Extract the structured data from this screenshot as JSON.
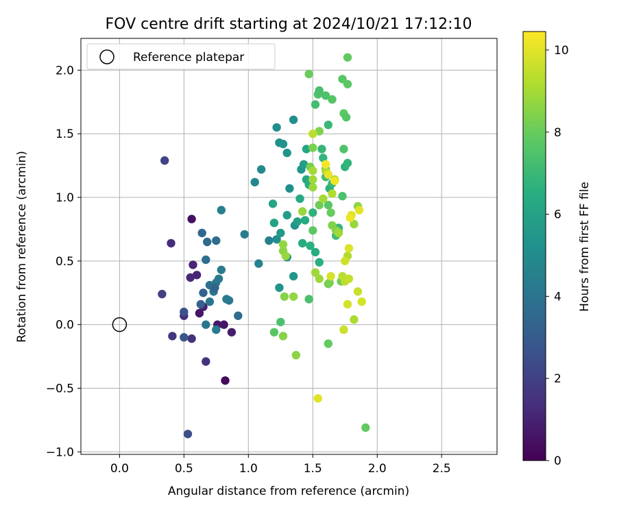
{
  "chart_data": {
    "type": "scatter",
    "title": "FOV centre drift starting at 2024/10/21 17:12:10",
    "xlabel": "Angular distance from reference (arcmin)",
    "ylabel": "Rotation from reference (arcmin)",
    "xlim": [
      -0.3,
      2.93
    ],
    "ylim": [
      -1.02,
      2.25
    ],
    "xticks": [
      0.0,
      0.5,
      1.0,
      1.5,
      2.0,
      2.5
    ],
    "xtick_labels": [
      "0.0",
      "0.5",
      "1.0",
      "1.5",
      "2.0",
      "2.5"
    ],
    "yticks": [
      -1.0,
      -0.5,
      0.0,
      0.5,
      1.0,
      1.5,
      2.0
    ],
    "ytick_labels": [
      "−1.0",
      "−0.5",
      "0.0",
      "0.5",
      "1.0",
      "1.5",
      "2.0"
    ],
    "grid": true,
    "legend": {
      "position": "top-left",
      "entries": [
        {
          "label": "Reference platepar",
          "marker": "open-circle"
        }
      ]
    },
    "reference_point": {
      "x": 0.0,
      "y": 0.0
    },
    "colorbar": {
      "label": "Hours from first FF file",
      "range": [
        0,
        10.45
      ],
      "ticks": [
        0,
        2,
        4,
        6,
        8,
        10
      ],
      "tick_labels": [
        "0",
        "2",
        "4",
        "6",
        "8",
        "10"
      ],
      "colormap": "viridis"
    },
    "series": [
      {
        "columns": [
          "x",
          "y",
          "hours"
        ],
        "points": [
          [
            0.56,
            0.83,
            0.5
          ],
          [
            0.82,
            -0.44,
            0.3
          ],
          [
            0.62,
            0.09,
            0.6
          ],
          [
            0.76,
            0.0,
            0.7
          ],
          [
            0.81,
            0.0,
            0.6
          ],
          [
            0.87,
            -0.06,
            0.8
          ],
          [
            0.65,
            0.14,
            0.9
          ],
          [
            0.57,
            0.47,
            1.1
          ],
          [
            0.55,
            0.37,
            1.2
          ],
          [
            0.6,
            0.39,
            1.1
          ],
          [
            0.4,
            0.64,
            1.3
          ],
          [
            0.5,
            0.07,
            1.4
          ],
          [
            0.56,
            -0.11,
            1.5
          ],
          [
            0.41,
            -0.09,
            1.6
          ],
          [
            0.67,
            -0.29,
            1.5
          ],
          [
            0.33,
            0.24,
            2.0
          ],
          [
            0.35,
            1.29,
            2.1
          ],
          [
            0.53,
            -0.86,
            2.5
          ],
          [
            0.5,
            0.1,
            2.6
          ],
          [
            0.5,
            -0.1,
            2.8
          ],
          [
            0.63,
            0.16,
            3.2
          ],
          [
            0.65,
            0.25,
            3.3
          ],
          [
            0.64,
            0.72,
            3.5
          ],
          [
            0.68,
            0.65,
            3.6
          ],
          [
            0.75,
            0.66,
            3.7
          ],
          [
            0.67,
            0.51,
            3.8
          ],
          [
            0.7,
            0.31,
            3.9
          ],
          [
            0.73,
            0.26,
            4.0
          ],
          [
            0.75,
            0.33,
            4.1
          ],
          [
            0.77,
            0.36,
            4.2
          ],
          [
            0.79,
            0.43,
            4.3
          ],
          [
            0.7,
            0.18,
            4.0
          ],
          [
            0.74,
            0.29,
            3.4
          ],
          [
            0.67,
            0.0,
            4.1
          ],
          [
            0.75,
            -0.04,
            4.3
          ],
          [
            0.83,
            0.2,
            4.3
          ],
          [
            0.85,
            0.19,
            4.2
          ],
          [
            0.92,
            0.07,
            3.7
          ],
          [
            0.79,
            0.9,
            4.5
          ],
          [
            0.97,
            0.71,
            4.4
          ],
          [
            1.08,
            0.48,
            4.6
          ],
          [
            1.05,
            1.12,
            4.8
          ],
          [
            1.1,
            1.22,
            4.9
          ],
          [
            1.16,
            0.66,
            4.5
          ],
          [
            1.22,
            0.67,
            5.0
          ],
          [
            1.22,
            1.55,
            5.1
          ],
          [
            1.24,
            1.43,
            5.2
          ],
          [
            1.27,
            1.42,
            5.3
          ],
          [
            1.3,
            1.35,
            5.4
          ],
          [
            1.3,
            0.53,
            5.1
          ],
          [
            1.35,
            1.61,
            5.2
          ],
          [
            1.24,
            0.29,
            5.3
          ],
          [
            1.35,
            0.38,
            5.5
          ],
          [
            1.32,
            1.07,
            5.2
          ],
          [
            1.36,
            0.78,
            5.3
          ],
          [
            1.41,
            1.22,
            5.4
          ],
          [
            1.25,
            0.72,
            5.6
          ],
          [
            1.3,
            0.86,
            5.7
          ],
          [
            1.43,
            1.26,
            5.8
          ],
          [
            1.38,
            0.81,
            5.9
          ],
          [
            1.2,
            0.8,
            6.0
          ],
          [
            1.19,
            0.95,
            6.1
          ],
          [
            1.45,
            1.14,
            6.2
          ],
          [
            1.4,
            0.99,
            6.3
          ],
          [
            1.42,
            0.64,
            6.4
          ],
          [
            1.44,
            0.82,
            6.3
          ],
          [
            1.47,
            1.1,
            6.5
          ],
          [
            1.48,
            0.62,
            6.6
          ],
          [
            1.5,
            0.88,
            6.7
          ],
          [
            1.52,
            0.57,
            6.4
          ],
          [
            1.55,
            0.49,
            6.6
          ],
          [
            1.45,
            1.38,
            6.2
          ],
          [
            1.58,
            1.31,
            6.8
          ],
          [
            1.6,
            1.22,
            6.5
          ],
          [
            1.57,
            1.38,
            6.9
          ],
          [
            1.63,
            1.07,
            6.6
          ],
          [
            1.65,
            1.11,
            7.0
          ],
          [
            1.6,
            1.16,
            7.2
          ],
          [
            1.68,
            0.7,
            7.1
          ],
          [
            1.7,
            0.76,
            6.8
          ],
          [
            1.7,
            0.73,
            7.3
          ],
          [
            1.73,
            1.01,
            7.4
          ],
          [
            1.75,
            1.24,
            6.7
          ],
          [
            1.77,
            1.27,
            6.8
          ],
          [
            1.62,
            1.57,
            7.0
          ],
          [
            1.52,
            1.73,
            7.2
          ],
          [
            1.54,
            1.81,
            7.5
          ],
          [
            1.55,
            1.84,
            7.3
          ],
          [
            1.6,
            1.8,
            7.4
          ],
          [
            1.65,
            1.77,
            7.6
          ],
          [
            1.73,
            1.93,
            7.7
          ],
          [
            1.77,
            1.89,
            7.8
          ],
          [
            1.77,
            2.1,
            7.9
          ],
          [
            1.47,
            1.97,
            8.0
          ],
          [
            1.74,
            1.66,
            7.8
          ],
          [
            1.76,
            1.63,
            7.6
          ],
          [
            1.74,
            1.38,
            7.5
          ],
          [
            1.62,
            0.94,
            7.7
          ],
          [
            1.64,
            0.88,
            8.0
          ],
          [
            1.47,
            0.2,
            7.4
          ],
          [
            1.5,
            0.74,
            7.8
          ],
          [
            1.55,
            0.94,
            8.1
          ],
          [
            1.48,
            1.24,
            8.2
          ],
          [
            1.5,
            1.39,
            8.3
          ],
          [
            1.55,
            1.52,
            8.4
          ],
          [
            1.72,
            0.34,
            8.1
          ],
          [
            1.62,
            0.32,
            8.2
          ],
          [
            1.63,
            0.33,
            8.3
          ],
          [
            1.65,
            0.78,
            8.4
          ],
          [
            1.68,
            0.74,
            8.5
          ],
          [
            1.62,
            -0.15,
            7.9
          ],
          [
            1.25,
            0.02,
            7.4
          ],
          [
            1.2,
            -0.06,
            7.7
          ],
          [
            1.27,
            -0.09,
            8.5
          ],
          [
            1.37,
            -0.24,
            8.6
          ],
          [
            1.35,
            0.22,
            8.7
          ],
          [
            1.28,
            0.22,
            8.5
          ],
          [
            1.27,
            0.58,
            8.6
          ],
          [
            1.27,
            0.63,
            8.7
          ],
          [
            1.29,
            0.54,
            8.8
          ],
          [
            1.42,
            0.89,
            8.8
          ],
          [
            1.5,
            1.14,
            8.9
          ],
          [
            1.5,
            1.21,
            9.0
          ],
          [
            1.5,
            1.08,
            8.8
          ],
          [
            1.52,
            0.41,
            8.9
          ],
          [
            1.55,
            0.36,
            8.9
          ],
          [
            1.58,
            0.99,
            9.0
          ],
          [
            1.6,
            1.21,
            9.1
          ],
          [
            1.65,
            1.03,
            9.2
          ],
          [
            1.67,
            1.14,
            9.1
          ],
          [
            1.7,
            0.72,
            8.9
          ],
          [
            1.73,
            0.38,
            9.3
          ],
          [
            1.75,
            0.34,
            9.4
          ],
          [
            1.78,
            0.36,
            9.5
          ],
          [
            1.77,
            0.54,
            9.2
          ],
          [
            1.82,
            0.79,
            8.8
          ],
          [
            1.85,
            0.93,
            8.6
          ],
          [
            1.82,
            0.04,
            9.1
          ],
          [
            1.74,
            -0.04,
            9.6
          ],
          [
            1.75,
            0.5,
            9.7
          ],
          [
            1.85,
            0.26,
            9.6
          ],
          [
            1.88,
            0.18,
            9.8
          ],
          [
            1.77,
            0.16,
            9.8
          ],
          [
            1.78,
            0.6,
            9.9
          ],
          [
            1.8,
            0.86,
            9.9
          ],
          [
            1.86,
            0.9,
            10.0
          ],
          [
            1.79,
            0.84,
            10.2
          ],
          [
            1.6,
            1.26,
            10.3
          ],
          [
            1.62,
            1.18,
            10.1
          ],
          [
            1.67,
            1.13,
            10.2
          ],
          [
            1.5,
            1.5,
            9.4
          ],
          [
            1.54,
            -0.58,
            10.0
          ],
          [
            1.91,
            -0.81,
            7.9
          ],
          [
            1.64,
            0.38,
            9.8
          ]
        ]
      }
    ]
  }
}
